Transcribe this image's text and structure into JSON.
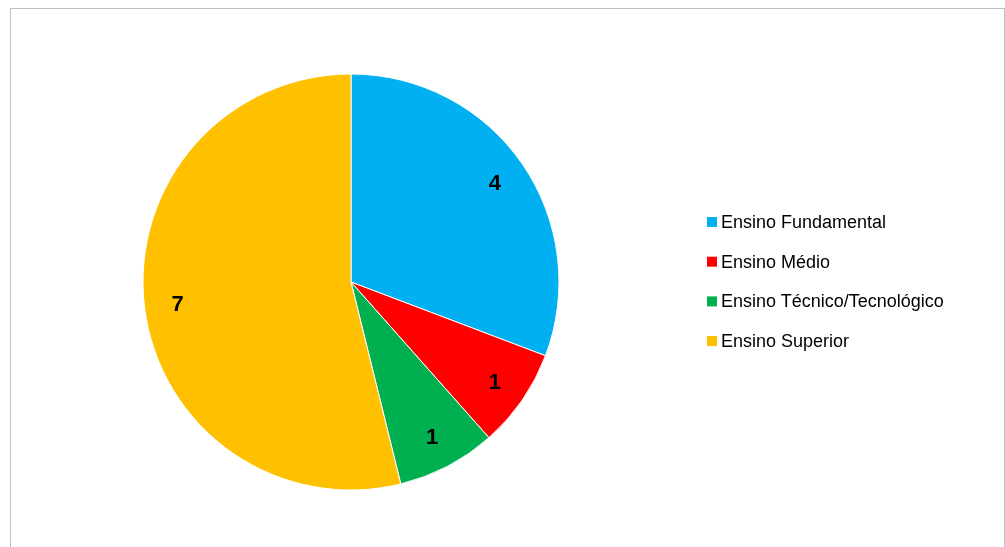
{
  "chart_data": {
    "type": "pie",
    "categories": [
      "Ensino Fundamental",
      "Ensino Médio",
      "Ensino Técnico/Tecnológico",
      "Ensino Superior"
    ],
    "values": [
      4,
      1,
      1,
      7
    ],
    "colors": [
      "#00b0f0",
      "#ff0000",
      "#00b050",
      "#ffc000"
    ],
    "data_labels": true,
    "legend": "right"
  }
}
